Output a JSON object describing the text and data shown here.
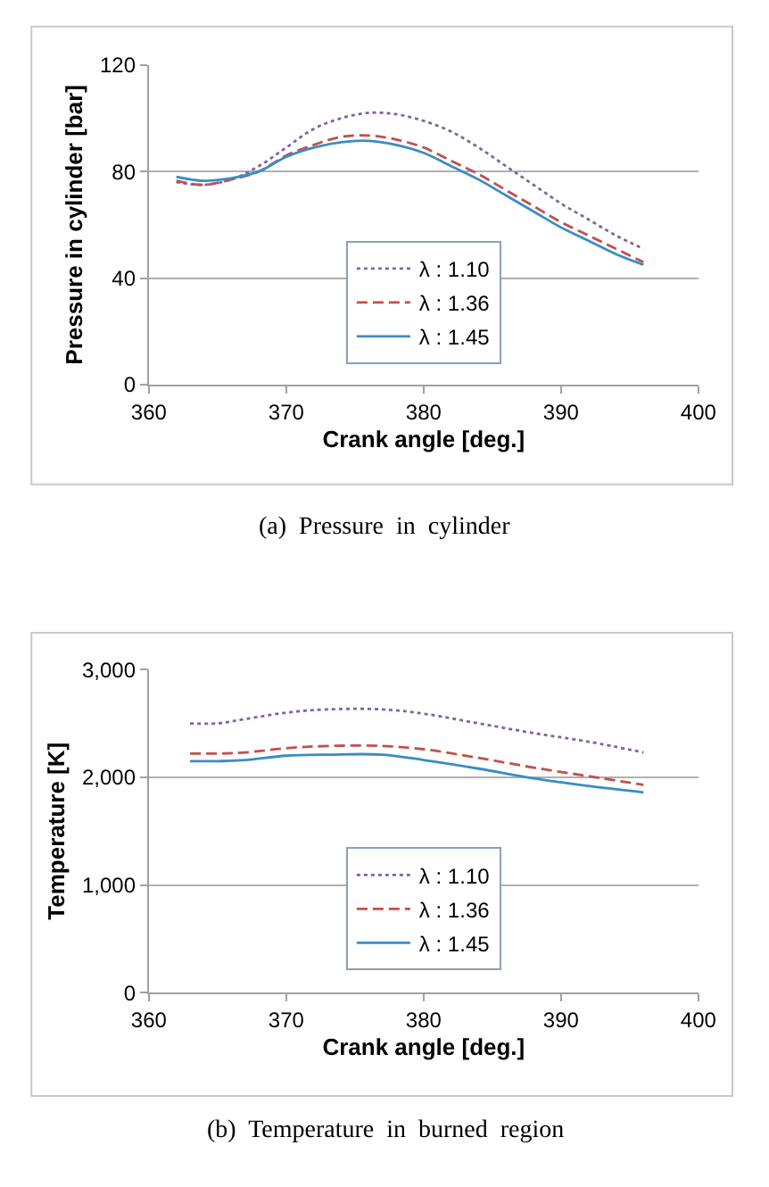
{
  "chart_data": [
    {
      "type": "line",
      "xlabel": "Crank angle [deg.]",
      "ylabel": "Pressure in cylinder [bar]",
      "annotations": [
        "(a)  Pressure  in  cylinder"
      ],
      "xlim": [
        360,
        400
      ],
      "xticks": [
        360,
        370,
        380,
        390,
        400
      ],
      "ylim": [
        0,
        120
      ],
      "yticks": [
        0,
        40,
        80,
        120
      ],
      "grid": "y",
      "legend": "bottom",
      "marker": "none",
      "x": [
        362,
        364,
        366,
        368,
        370,
        372,
        374,
        376,
        378,
        380,
        382,
        384,
        386,
        388,
        390,
        392,
        394,
        396
      ],
      "series": [
        {
          "name": "λ : 1.10",
          "color": "#8064a2",
          "line_style": "dotted",
          "values": [
            76,
            75,
            77,
            82,
            89,
            96,
            100,
            102,
            101.5,
            99,
            95,
            89,
            82,
            75,
            68,
            62,
            56,
            51
          ]
        },
        {
          "name": "λ : 1.36",
          "color": "#c0504d",
          "line_style": "dashed",
          "values": [
            76.5,
            75,
            77,
            80,
            86,
            90,
            93,
            93.5,
            92,
            89,
            84,
            79,
            73,
            67,
            61,
            56,
            51,
            46
          ]
        },
        {
          "name": "λ : 1.45",
          "color": "#3a8cc4",
          "line_style": "solid",
          "values": [
            78,
            76.5,
            77.5,
            80,
            85.5,
            89,
            91,
            91.5,
            90,
            87,
            82,
            77,
            71,
            65,
            59,
            54,
            49,
            45
          ]
        }
      ]
    },
    {
      "type": "line",
      "xlabel": "Crank angle [deg.]",
      "ylabel": "Temperature [K]",
      "annotations": [
        "(b)  Temperature  in  burned  region"
      ],
      "xlim": [
        360,
        400
      ],
      "xticks": [
        360,
        370,
        380,
        390,
        400
      ],
      "ylim": [
        0,
        3000
      ],
      "yticks": [
        {
          "value": 0,
          "label": "0"
        },
        {
          "value": 1000,
          "label": "1,000"
        },
        {
          "value": 2000,
          "label": "2,000"
        },
        {
          "value": 3000,
          "label": "3,000"
        }
      ],
      "grid": "y",
      "legend": "bottom",
      "marker": "none",
      "x": [
        363,
        365,
        367,
        370,
        373,
        377,
        380,
        384,
        388,
        392,
        396
      ],
      "series": [
        {
          "name": "λ : 1.10",
          "color": "#8064a2",
          "line_style": "dotted",
          "values": [
            2500,
            2500,
            2540,
            2600,
            2630,
            2630,
            2590,
            2500,
            2410,
            2330,
            2230
          ]
        },
        {
          "name": "λ : 1.36",
          "color": "#c0504d",
          "line_style": "dashed",
          "values": [
            2220,
            2220,
            2230,
            2270,
            2290,
            2290,
            2260,
            2180,
            2090,
            2010,
            1930
          ]
        },
        {
          "name": "λ : 1.45",
          "color": "#3a8cc4",
          "line_style": "solid",
          "values": [
            2150,
            2150,
            2160,
            2200,
            2210,
            2210,
            2160,
            2080,
            1990,
            1920,
            1860
          ]
        }
      ]
    }
  ]
}
